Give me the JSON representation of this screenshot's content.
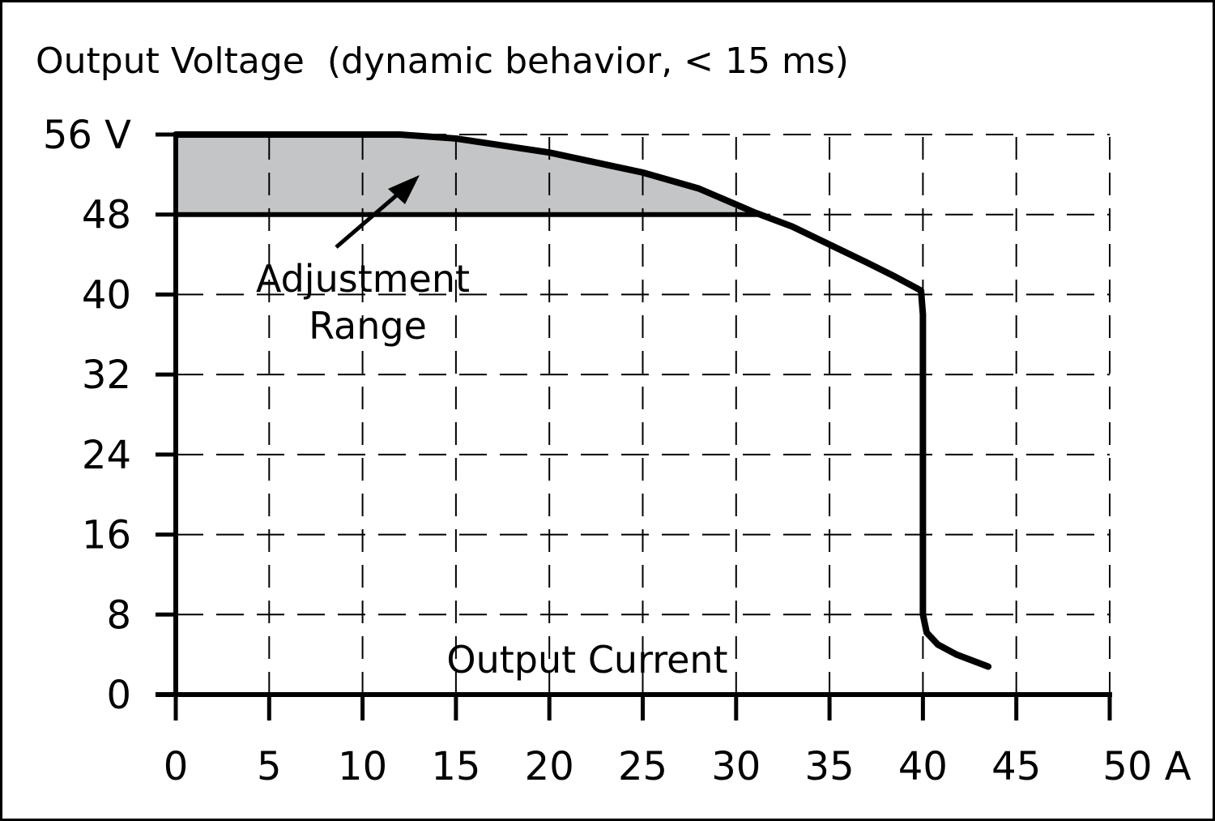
{
  "chart_data": {
    "type": "line",
    "title": "Output Voltage  (dynamic behavior, < 15 ms)",
    "xlabel": "Output Current",
    "ylabel": "",
    "xlim": [
      0,
      50
    ],
    "ylim": [
      0,
      56
    ],
    "grid": true,
    "x_ticks": [
      0,
      5,
      10,
      15,
      20,
      25,
      30,
      35,
      40,
      45,
      50
    ],
    "x_tick_labels": [
      "0",
      "5",
      "10",
      "15",
      "20",
      "25",
      "30",
      "35",
      "40",
      "45",
      "50 A"
    ],
    "y_ticks": [
      0,
      8,
      16,
      24,
      32,
      40,
      48,
      56
    ],
    "y_tick_labels": [
      "0",
      "8",
      "16",
      "24",
      "32",
      "40",
      "48",
      "56 V"
    ],
    "series": [
      {
        "x": [
          0,
          12,
          15,
          20,
          25,
          28,
          31,
          33,
          35,
          37,
          38.5,
          39.9,
          40,
          40,
          40,
          40.2,
          40.8,
          41.8,
          43.5
        ],
        "y": [
          56,
          56,
          55.6,
          54.2,
          52.2,
          50.6,
          48.2,
          46.8,
          45,
          43.2,
          41.8,
          40.4,
          38,
          20,
          8,
          6.2,
          5.0,
          4.0,
          2.8
        ],
        "color": "#000000"
      }
    ],
    "shaded_region": {
      "label": [
        "Adjustment",
        "Range"
      ],
      "y_range": [
        48,
        56
      ],
      "bounded_by": "curve",
      "color": "#c4c5c6"
    }
  }
}
